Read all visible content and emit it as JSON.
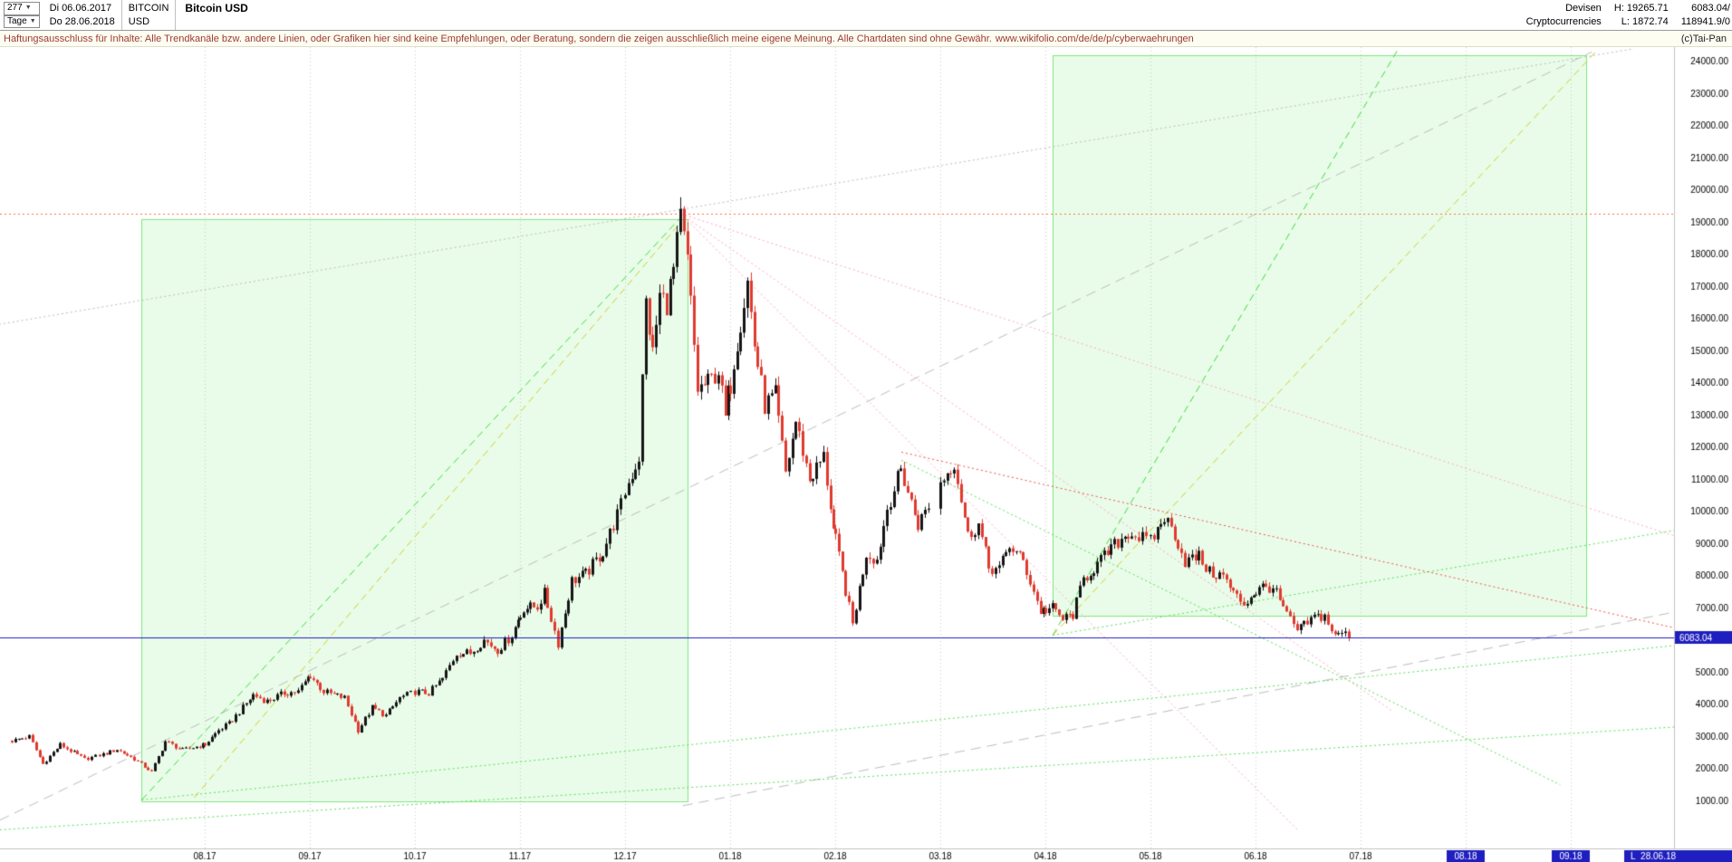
{
  "header": {
    "bars_count": "277",
    "period_label": "Tage",
    "start_date": "Di 06.06.2017",
    "end_date": "Do 28.06.2018",
    "symbol_line1": "BITCOIN",
    "symbol_line2": "USD",
    "title": "Bitcoin USD",
    "market_line1": "Devisen",
    "market_line2": "Cryptocurrencies",
    "high_label": "H: 19265.71",
    "low_label": "L: 1872.74",
    "price_line1": "6083.04/",
    "price_line2": "118941.9/0"
  },
  "disclaimer": {
    "text": "Haftungsausschluss für Inhalte: Alle Trendkanäle bzw. andere Linien, oder Grafiken hier sind keine Empfehlungen, oder Beratung, sondern die zeigen ausschließlich meine eigene Meinung. Alle Chartdaten sind ohne Gewähr.",
    "link": "www.wikifolio.com/de/de/p/cyberwaehrungen",
    "copyright": "(c)Tai-Pan"
  },
  "chart_data": {
    "type": "candlestick",
    "title": "Bitcoin USD",
    "period": "Tage",
    "high": 19265.71,
    "low": 1872.74,
    "last_price": 6083.04,
    "last_date_label": "L  28.06.18",
    "y_axis": {
      "min": 1000,
      "max": 24000,
      "step": 1000
    },
    "x_ticks": [
      {
        "label": "08.17",
        "t": 2
      },
      {
        "label": "09.17",
        "t": 3
      },
      {
        "label": "10.17",
        "t": 4
      },
      {
        "label": "11.17",
        "t": 5
      },
      {
        "label": "12.17",
        "t": 6
      },
      {
        "label": "01.18",
        "t": 7
      },
      {
        "label": "02.18",
        "t": 8
      },
      {
        "label": "03.18",
        "t": 9
      },
      {
        "label": "04.18",
        "t": 10
      },
      {
        "label": "05.18",
        "t": 11
      },
      {
        "label": "06.18",
        "t": 12
      },
      {
        "label": "07.18",
        "t": 13
      },
      {
        "label": "08.18",
        "t": 14,
        "highlight": true
      },
      {
        "label": "09.18",
        "t": 15,
        "highlight": true
      }
    ],
    "price_anchors": [
      [
        "2017-06-06",
        2870
      ],
      [
        "2017-06-11",
        3000
      ],
      [
        "2017-06-15",
        2150
      ],
      [
        "2017-06-20",
        2750
      ],
      [
        "2017-06-27",
        2300
      ],
      [
        "2017-07-02",
        2450
      ],
      [
        "2017-07-06",
        2600
      ],
      [
        "2017-07-11",
        2300
      ],
      [
        "2017-07-16",
        1900
      ],
      [
        "2017-07-20",
        2850
      ],
      [
        "2017-07-25",
        2580
      ],
      [
        "2017-08-01",
        2750
      ],
      [
        "2017-08-05",
        3200
      ],
      [
        "2017-08-08",
        3400
      ],
      [
        "2017-08-12",
        3900
      ],
      [
        "2017-08-15",
        4300
      ],
      [
        "2017-08-19",
        4100
      ],
      [
        "2017-08-24",
        4350
      ],
      [
        "2017-08-28",
        4400
      ],
      [
        "2017-09-01",
        4900
      ],
      [
        "2017-09-05",
        4400
      ],
      [
        "2017-09-08",
        4300
      ],
      [
        "2017-09-11",
        4200
      ],
      [
        "2017-09-15",
        3200
      ],
      [
        "2017-09-19",
        3900
      ],
      [
        "2017-09-23",
        3650
      ],
      [
        "2017-09-27",
        4200
      ],
      [
        "2017-10-01",
        4400
      ],
      [
        "2017-10-05",
        4350
      ],
      [
        "2017-10-09",
        4800
      ],
      [
        "2017-10-13",
        5600
      ],
      [
        "2017-10-17",
        5600
      ],
      [
        "2017-10-21",
        6000
      ],
      [
        "2017-10-25",
        5700
      ],
      [
        "2017-10-29",
        6150
      ],
      [
        "2017-11-02",
        7000
      ],
      [
        "2017-11-06",
        7050
      ],
      [
        "2017-11-08",
        7450
      ],
      [
        "2017-11-12",
        5900
      ],
      [
        "2017-11-16",
        7850
      ],
      [
        "2017-11-20",
        8050
      ],
      [
        "2017-11-25",
        8750
      ],
      [
        "2017-11-29",
        9900
      ],
      [
        "2017-12-02",
        10900
      ],
      [
        "2017-12-05",
        11700
      ],
      [
        "2017-12-07",
        16500
      ],
      [
        "2017-12-09",
        14900
      ],
      [
        "2017-12-11",
        16700
      ],
      [
        "2017-12-13",
        16500
      ],
      [
        "2017-12-15",
        17500
      ],
      [
        "2017-12-17",
        19100
      ],
      [
        "2017-12-19",
        17800
      ],
      [
        "2017-12-22",
        13800
      ],
      [
        "2017-12-25",
        14000
      ],
      [
        "2017-12-28",
        14400
      ],
      [
        "2017-12-30",
        12900
      ],
      [
        "2018-01-02",
        14700
      ],
      [
        "2018-01-06",
        17150
      ],
      [
        "2018-01-08",
        15200
      ],
      [
        "2018-01-11",
        13300
      ],
      [
        "2018-01-14",
        13600
      ],
      [
        "2018-01-17",
        11200
      ],
      [
        "2018-01-20",
        12800
      ],
      [
        "2018-01-24",
        11000
      ],
      [
        "2018-01-28",
        11700
      ],
      [
        "2018-02-01",
        9100
      ],
      [
        "2018-02-06",
        6500
      ],
      [
        "2018-02-10",
        8700
      ],
      [
        "2018-02-13",
        8500
      ],
      [
        "2018-02-16",
        10100
      ],
      [
        "2018-02-20",
        11300
      ],
      [
        "2018-02-25",
        9600
      ],
      [
        "2018-03-01",
        10900
      ],
      [
        "2018-03-05",
        11550
      ],
      [
        "2018-03-09",
        9250
      ],
      [
        "2018-03-12",
        9600
      ],
      [
        "2018-03-15",
        8250
      ],
      [
        "2018-03-18",
        8200
      ],
      [
        "2018-03-21",
        8950
      ],
      [
        "2018-03-25",
        8450
      ],
      [
        "2018-03-30",
        6900
      ],
      [
        "2018-04-03",
        7000
      ],
      [
        "2018-04-06",
        6650
      ],
      [
        "2018-04-09",
        6800
      ],
      [
        "2018-04-12",
        7900
      ],
      [
        "2018-04-16",
        8350
      ],
      [
        "2018-04-20",
        8850
      ],
      [
        "2018-04-25",
        9350
      ],
      [
        "2018-05-01",
        9050
      ],
      [
        "2018-05-05",
        9830
      ],
      [
        "2018-05-08",
        9300
      ],
      [
        "2018-05-11",
        8450
      ],
      [
        "2018-05-15",
        8600
      ],
      [
        "2018-05-18",
        8100
      ],
      [
        "2018-05-22",
        8000
      ],
      [
        "2018-05-25",
        7450
      ],
      [
        "2018-05-28",
        7130
      ],
      [
        "2018-06-01",
        7500
      ],
      [
        "2018-06-03",
        7650
      ],
      [
        "2018-06-06",
        7650
      ],
      [
        "2018-06-10",
        6780
      ],
      [
        "2018-06-13",
        6300
      ],
      [
        "2018-06-15",
        6450
      ],
      [
        "2018-06-18",
        6720
      ],
      [
        "2018-06-21",
        6750
      ],
      [
        "2018-06-24",
        6100
      ],
      [
        "2018-06-26",
        6250
      ],
      [
        "2018-06-28",
        6083.04
      ]
    ],
    "overlays": {
      "rects": [
        {
          "a": [
            1.4,
            19100
          ],
          "b": [
            6.6,
            1000
          ]
        },
        {
          "a": [
            10.07,
            24200
          ],
          "b": [
            15.15,
            6760
          ]
        }
      ],
      "hlines": [
        {
          "p": 19265.71,
          "color": "hline_red",
          "style": "dotted"
        },
        {
          "p": 6083.04,
          "color": "accent_blue",
          "style": "solid"
        }
      ],
      "trendlines": [
        {
          "color": "gray",
          "style": "dotted",
          "a": [
            0,
            15800
          ],
          "b": [
            15.6,
            24400
          ]
        },
        {
          "color": "gray",
          "style": "longdash",
          "a": [
            0.05,
            400
          ],
          "b": [
            15.2,
            24300
          ]
        },
        {
          "color": "gray",
          "style": "longdash",
          "a": [
            6.55,
            850
          ],
          "b": [
            16.5,
            7200
          ]
        },
        {
          "color": "green_dash",
          "style": "dash",
          "a": [
            1.4,
            1030
          ],
          "b": [
            6.53,
            19150
          ]
        },
        {
          "color": "green_dash",
          "style": "dash",
          "a": [
            10.07,
            6150
          ],
          "b": [
            13.35,
            24350
          ]
        },
        {
          "color": "yellow_dash",
          "style": "dash",
          "a": [
            1.9,
            1100
          ],
          "b": [
            6.53,
            19000
          ]
        },
        {
          "color": "yellow_dash",
          "style": "dash",
          "a": [
            10.07,
            6150
          ],
          "b": [
            15.25,
            24350
          ]
        },
        {
          "color": "green_dot",
          "style": "dotted",
          "a": [
            1.4,
            1030
          ],
          "b": [
            16.5,
            6000
          ]
        },
        {
          "color": "green_dot",
          "style": "dotted",
          "a": [
            0.05,
            100
          ],
          "b": [
            16.5,
            3400
          ]
        },
        {
          "color": "green_dot",
          "style": "dotted",
          "a": [
            8.63,
            11600
          ],
          "b": [
            14.9,
            1500
          ]
        },
        {
          "color": "green_dot",
          "style": "dotted",
          "a": [
            10.07,
            6150
          ],
          "b": [
            16.5,
            9700
          ]
        },
        {
          "color": "pink_dot",
          "style": "dotted",
          "a": [
            6.53,
            19265
          ],
          "b": [
            12.4,
            100
          ]
        },
        {
          "color": "pink_dot",
          "style": "dotted",
          "a": [
            6.53,
            19265
          ],
          "b": [
            13.3,
            3800
          ]
        },
        {
          "color": "pink_dot",
          "style": "dotted",
          "a": [
            6.53,
            19265
          ],
          "b": [
            16.5,
            8700
          ]
        },
        {
          "color": "red_dot",
          "style": "dotted",
          "a": [
            8.63,
            11850
          ],
          "b": [
            16.5,
            6000
          ]
        }
      ]
    },
    "colors": {
      "up": "#151515",
      "down": "#e03a2f",
      "grid": "#cdcdcd",
      "axis_text": "#000000",
      "accent_blue": "#1f1fbf",
      "rect_fill": "rgba(120,235,120,0.16)",
      "rect_stroke": "#7de87d",
      "green_dash": "#3ddc3d",
      "yellow_dash": "#cfcf2a",
      "green_dot": "#57e057",
      "pink_dot": "#ffa6c1",
      "red_dot": "#f05050",
      "gray": "#bdbdbd",
      "hline_red": "#ff7043"
    }
  }
}
